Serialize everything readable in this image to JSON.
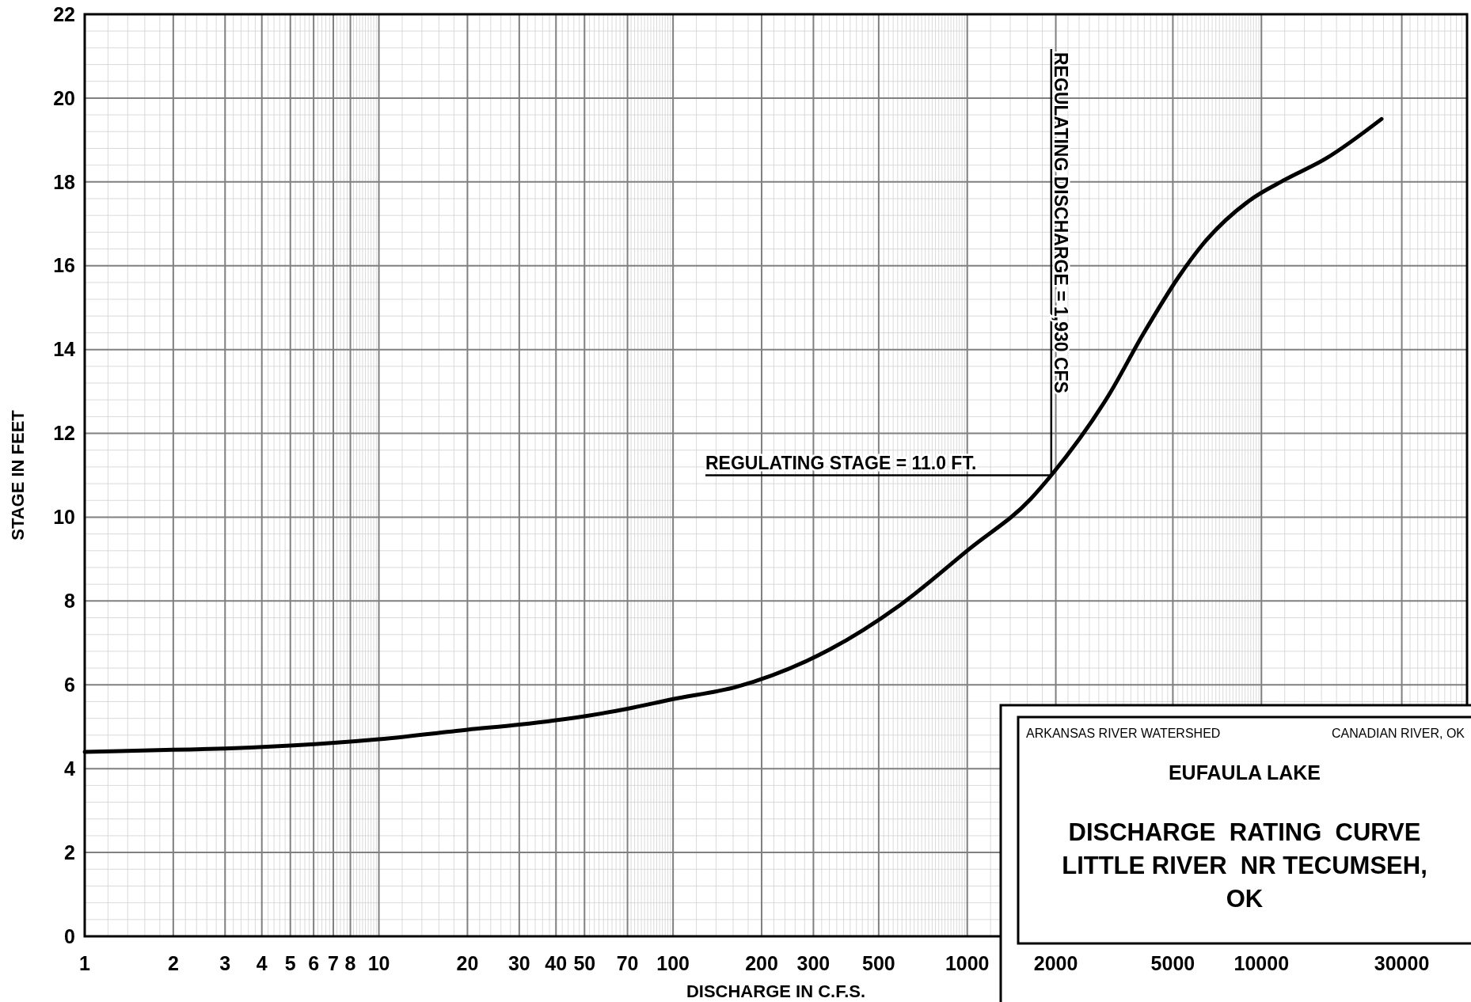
{
  "chart_data": {
    "type": "line",
    "title": "DISCHARGE  RATING  CURVE",
    "subtitle": "LITTLE RIVER  NR TECUMSEH, OK",
    "xlabel": "DISCHARGE IN C.F.S.",
    "ylabel": "STAGE IN FEET",
    "annotations": [
      "ARKANSAS RIVER WATERSHED",
      "CANADIAN RIVER, OK",
      "EUFAULA LAKE"
    ],
    "log": "x",
    "grid": true,
    "line_style": "solid",
    "marker": "none",
    "xlim": [
      1,
      50000
    ],
    "ylim": [
      0,
      22
    ],
    "xticks": [
      1,
      2,
      3,
      4,
      5,
      6,
      7,
      8,
      10,
      20,
      30,
      40,
      50,
      70,
      100,
      200,
      300,
      500,
      1000,
      2000,
      5000,
      10000,
      30000
    ],
    "yticks": [
      0,
      2,
      4,
      6,
      8,
      10,
      12,
      14,
      16,
      18,
      20,
      22
    ],
    "ref_lines": [
      {
        "axis": "y",
        "value": 11.0,
        "label": "REGULATING STAGE = 11.0 FT."
      },
      {
        "axis": "x",
        "value": 1930,
        "label": "REGULATING DISCHARGE = 1,930 CFS"
      }
    ],
    "series": [
      {
        "color": "#000000",
        "x": [
          1,
          2,
          3,
          5,
          10,
          20,
          30,
          50,
          70,
          100,
          164,
          340,
          590,
          1020,
          1640,
          1930,
          3050,
          3950,
          5250,
          6300,
          9080,
          12000,
          16500,
          25600
        ],
        "values": [
          4.4,
          4.45,
          4.48,
          4.55,
          4.7,
          4.93,
          5.05,
          5.25,
          5.43,
          5.66,
          5.95,
          6.84,
          7.9,
          9.25,
          10.43,
          11.0,
          12.95,
          14.35,
          15.75,
          16.5,
          17.55,
          18.05,
          18.55,
          19.5
        ]
      }
    ]
  }
}
